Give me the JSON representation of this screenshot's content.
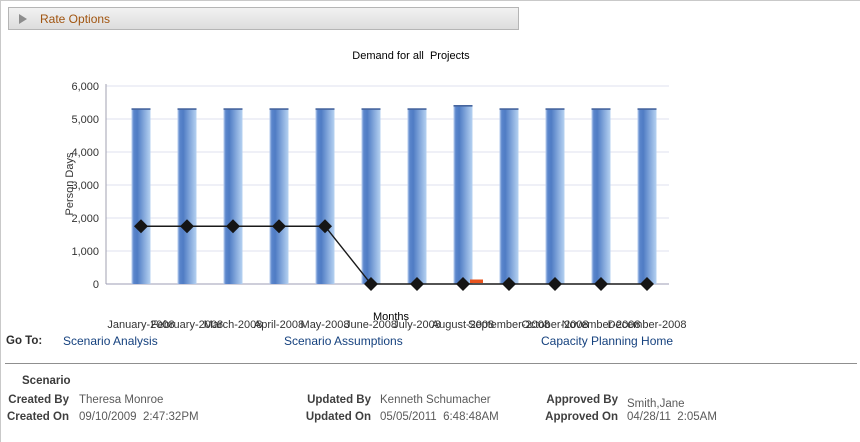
{
  "rate_options": {
    "label": "Rate Options"
  },
  "goto": {
    "label": "Go To:",
    "links": [
      "Scenario Analysis",
      "Scenario Assumptions",
      "Capacity Planning Home"
    ]
  },
  "scenario": {
    "heading": "Scenario",
    "created_by_label": "Created By",
    "created_by": "Theresa Monroe",
    "created_on_label": "Created On",
    "created_on": "09/10/2009  2:47:32PM",
    "updated_by_label": "Updated By",
    "updated_by": "Kenneth Schumacher",
    "updated_on_label": "Updated On",
    "updated_on": "05/05/2011  6:48:48AM",
    "approved_by_label": "Approved By",
    "approved_by": "Smith,Jane",
    "approved_on_label": "Approved On",
    "approved_on": "04/28/11  2:05AM"
  },
  "chart_data": {
    "type": "bar",
    "title": "Demand for all  Projects",
    "xlabel": "Months",
    "ylabel": "Person Days",
    "ylim": [
      0,
      6000
    ],
    "ytick_interval": 1000,
    "grid": true,
    "legend_position": "none",
    "categories": [
      "January-2008",
      "February-2008",
      "March-2008",
      "April-2008",
      "May-2008",
      "June-2008",
      "July-2008",
      "August-2008",
      "September-2008",
      "October-2008",
      "November-2008",
      "December-2008"
    ],
    "series": [
      {
        "name": "demand-bars",
        "type": "bar",
        "color_light": "#bcd1f0",
        "color_dark": "#4f7cc4",
        "values": [
          5300,
          5300,
          5300,
          5300,
          5300,
          5300,
          5300,
          5400,
          5300,
          5300,
          5300,
          5300
        ]
      },
      {
        "name": "overlay-bar",
        "type": "bar",
        "color": "#e8541e",
        "values": [
          null,
          null,
          null,
          null,
          null,
          null,
          null,
          100,
          null,
          null,
          null,
          null
        ]
      },
      {
        "name": "fulfilled-line",
        "type": "line",
        "color": "#1a1a1a",
        "marker": "diamond",
        "values": [
          1750,
          1750,
          1750,
          1750,
          1750,
          0,
          0,
          0,
          0,
          0,
          0,
          0
        ]
      }
    ],
    "colors": {
      "gridline": "#dfe1ef",
      "axis": "#9c9cb4",
      "tick_text": "#333333"
    }
  }
}
